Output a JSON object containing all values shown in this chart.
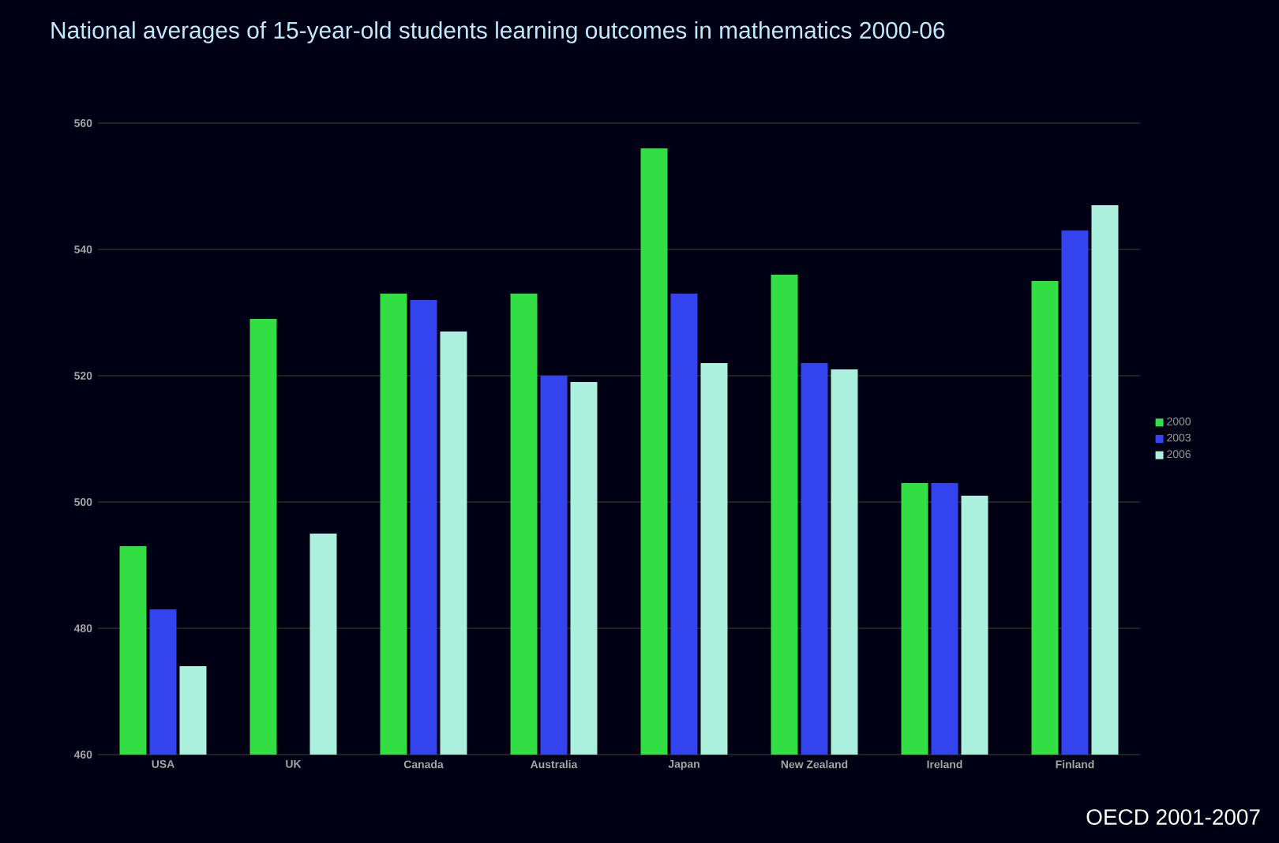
{
  "chart_data": {
    "type": "bar",
    "title": "National averages of 15-year-old students learning outcomes in mathematics 2000-06",
    "categories": [
      "USA",
      "UK",
      "Canada",
      "Australia",
      "Japan",
      "New Zealand",
      "Ireland",
      "Finland"
    ],
    "series": [
      {
        "name": "2000",
        "color": "#33dd44",
        "values": [
          493,
          529,
          533,
          533,
          556,
          536,
          503,
          535
        ]
      },
      {
        "name": "2003",
        "color": "#3344ee",
        "values": [
          483,
          null,
          532,
          520,
          533,
          522,
          503,
          543
        ]
      },
      {
        "name": "2006",
        "color": "#aaf0dd",
        "values": [
          474,
          495,
          527,
          519,
          522,
          521,
          501,
          547
        ]
      }
    ],
    "ylim": [
      460,
      560
    ],
    "yticks": [
      460,
      480,
      500,
      520,
      540,
      560
    ],
    "grid": "y",
    "legend": "right",
    "annotations": [
      "OECD 2001-2007"
    ]
  }
}
